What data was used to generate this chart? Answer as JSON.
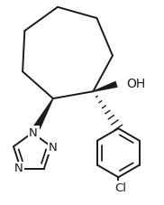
{
  "bg_color": "#ffffff",
  "line_color": "#1a1a1a",
  "bond_lw": 1.4,
  "font_size": 9.5,
  "figsize": [
    1.82,
    2.27
  ],
  "dpi": 100,
  "xlim": [
    0,
    182
  ],
  "ylim": [
    0,
    227
  ]
}
